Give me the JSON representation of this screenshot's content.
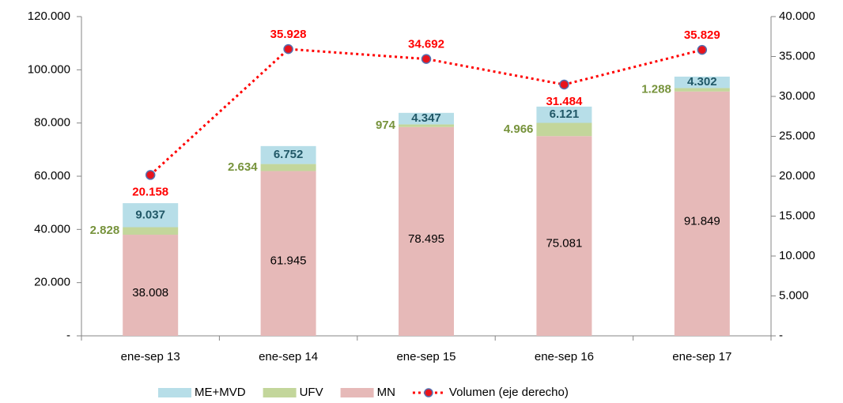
{
  "chart_data": {
    "type": "bar",
    "categories": [
      "ene-sep 13",
      "ene-sep 14",
      "ene-sep 15",
      "ene-sep 16",
      "ene-sep 17"
    ],
    "series": [
      {
        "name": "ME+MVD",
        "color": "#b7dee8",
        "values": [
          9037,
          6752,
          4347,
          6121,
          4302
        ],
        "value_labels": [
          "9.037",
          "6.752",
          "4.347",
          "6.121",
          "4.302"
        ]
      },
      {
        "name": "UFV",
        "color": "#c3d69b",
        "values": [
          2828,
          2634,
          974,
          4966,
          1288
        ],
        "value_labels": [
          "2.828",
          "2.634",
          "974",
          "4.966",
          "1.288"
        ]
      },
      {
        "name": "MN",
        "color": "#e6b9b8",
        "values": [
          38008,
          61945,
          78495,
          75081,
          91849
        ],
        "value_labels": [
          "38.008",
          "61.945",
          "78.495",
          "75.081",
          "91.849"
        ]
      },
      {
        "name": "Volumen (eje derecho)",
        "color": "#ff0000",
        "type": "line",
        "axis": "y2",
        "values": [
          20158,
          35928,
          34692,
          31484,
          35829
        ],
        "value_labels": [
          "20.158",
          "35.928",
          "34.692",
          "31.484",
          "35.829"
        ]
      }
    ],
    "ylim": [
      0,
      120000
    ],
    "yticks": [
      {
        "value": 0,
        "label": "-"
      },
      {
        "value": 20000,
        "label": "20.000"
      },
      {
        "value": 40000,
        "label": "40.000"
      },
      {
        "value": 60000,
        "label": "60.000"
      },
      {
        "value": 80000,
        "label": "80.000"
      },
      {
        "value": 100000,
        "label": "100.000"
      },
      {
        "value": 120000,
        "label": "120.000"
      }
    ],
    "y2lim": [
      0,
      40000
    ],
    "y2ticks": [
      {
        "value": 0,
        "label": "-"
      },
      {
        "value": 5000,
        "label": "5.000"
      },
      {
        "value": 10000,
        "label": "10.000"
      },
      {
        "value": 15000,
        "label": "15.000"
      },
      {
        "value": 20000,
        "label": "20.000"
      },
      {
        "value": 25000,
        "label": "25.000"
      },
      {
        "value": 30000,
        "label": "30.000"
      },
      {
        "value": 35000,
        "label": "35.000"
      },
      {
        "value": 40000,
        "label": "40.000"
      }
    ],
    "legend": "bottom"
  }
}
